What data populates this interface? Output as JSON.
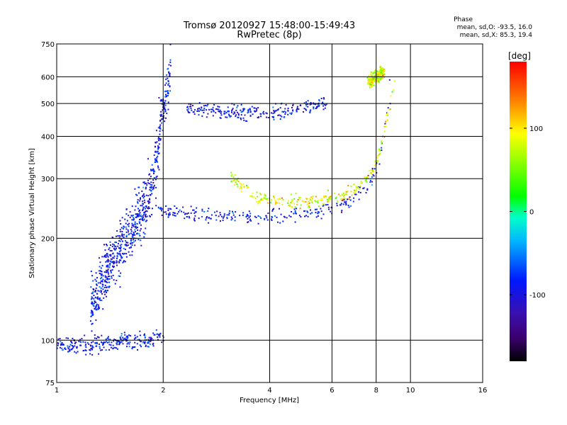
{
  "chart_data": {
    "type": "scatter",
    "title": "Tromsø 20120927 15:48:00-15:49:43",
    "subtitle": "RwPretec (8p)",
    "xlabel": "Frequency [MHz]",
    "ylabel": "Stationary phase Virtual Height [km]",
    "xscale": "log",
    "yscale": "log",
    "xlim": [
      1,
      16
    ],
    "ylim": [
      75,
      750
    ],
    "xticks": [
      1,
      2,
      4,
      6,
      8,
      10,
      16
    ],
    "xtick_labels": [
      "1",
      "2",
      "4",
      "6",
      "8",
      "10",
      "16"
    ],
    "yticks": [
      75,
      100,
      200,
      300,
      400,
      500,
      600,
      750
    ],
    "ytick_labels": [
      "75",
      "100",
      "200",
      "300",
      "400",
      "500",
      "600",
      "750"
    ],
    "grid": true,
    "stats": {
      "heading": "Phase",
      "line_O": "mean, sd,O: -93.5, 16.0",
      "line_X": "mean, sd,X:  85.3, 19.4"
    },
    "colorbar": {
      "label": "[deg]",
      "range": [
        -180,
        180
      ],
      "ticks": [
        100,
        0,
        -100
      ],
      "tick_labels": [
        "100",
        "0",
        "-100"
      ],
      "colormap": "rainbow (black-purple-blue-cyan-green-yellow-red)"
    },
    "series": [
      {
        "mode": "O",
        "phase_mean": -93.5,
        "traces": [
          {
            "x": [
              1.0,
              1.1,
              1.2,
              1.3,
              1.4,
              1.5,
              1.6,
              1.7,
              1.8,
              1.9,
              1.95,
              2.0
            ],
            "y": [
              97,
              96,
              96,
              97,
              98,
              99,
              100,
              99,
              100,
              101,
              102,
              100
            ]
          },
          {
            "x": [
              1.25,
              1.3,
              1.35,
              1.4,
              1.5,
              1.6,
              1.7,
              1.8,
              1.85,
              1.9,
              1.95,
              2.0,
              2.05,
              2.1
            ],
            "y": [
              125,
              135,
              150,
              165,
              185,
              205,
              230,
              255,
              285,
              330,
              400,
              480,
              560,
              620
            ]
          },
          {
            "x": [
              1.9,
              2.0,
              2.1,
              2.3,
              2.6,
              3.0,
              3.5,
              4.0,
              4.5,
              5.0,
              5.5,
              6.0,
              6.5,
              7.0,
              7.5,
              8.0,
              8.3,
              8.6,
              8.8
            ],
            "y": [
              252,
              240,
              236,
              235,
              234,
              233,
              233,
              233,
              234,
              236,
              240,
              245,
              252,
              262,
              280,
              320,
              380,
              470,
              560
            ]
          },
          {
            "x": [
              2.3,
              2.6,
              3.0,
              3.5,
              4.0,
              4.5,
              5.0,
              5.5,
              5.8
            ],
            "y": [
              480,
              478,
              473,
              470,
              472,
              478,
              488,
              500,
              508
            ]
          }
        ]
      },
      {
        "mode": "X",
        "phase_mean": 85.3,
        "traces": [
          {
            "x": [
              3.1,
              3.3,
              3.6,
              4.0,
              4.5,
              5.0,
              5.5,
              6.0,
              6.5,
              7.0,
              7.5,
              8.0,
              8.3,
              8.6,
              8.8,
              9.0
            ],
            "y": [
              310,
              285,
              268,
              260,
              256,
              256,
              258,
              262,
              268,
              280,
              300,
              330,
              380,
              450,
              520,
              600
            ]
          },
          {
            "x": [
              7.6,
              7.8,
              8.0,
              8.2,
              8.4
            ],
            "y": [
              580,
              590,
              600,
              610,
              615
            ]
          }
        ]
      }
    ]
  }
}
